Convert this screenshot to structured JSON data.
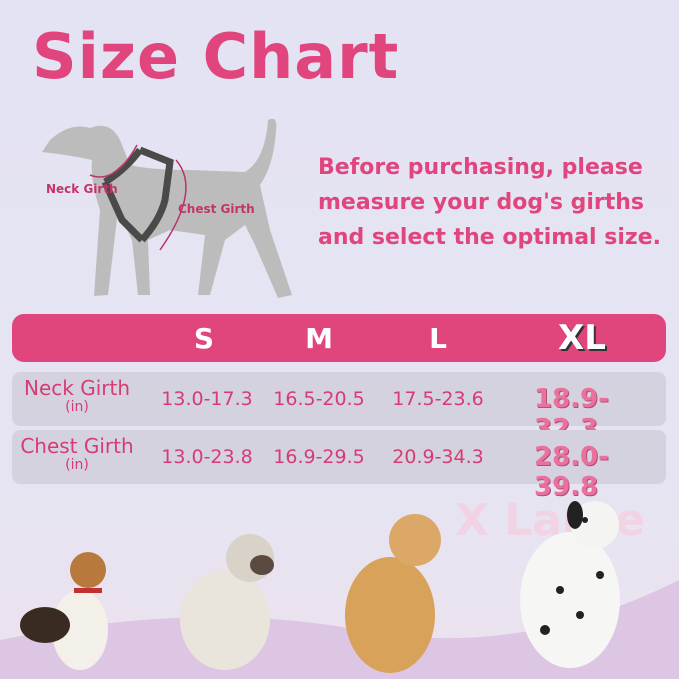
{
  "title": "Size Chart",
  "diagram": {
    "neck_label": "Neck Girth",
    "chest_label": "Chest Girth"
  },
  "intro": "Before purchasing, please measure your dog's girths and select the optimal size.",
  "sizes": [
    "S",
    "M",
    "L",
    "XL"
  ],
  "rows": [
    {
      "label": "Neck Girth",
      "unit": "(in)",
      "values": [
        "13.0-17.3",
        "16.5-20.5",
        "17.5-23.6",
        "18.9-32.3"
      ]
    },
    {
      "label": "Chest Girth",
      "unit": "(in)",
      "values": [
        "13.0-23.8",
        "16.9-29.5",
        "20.9-34.3",
        "28.0-39.8"
      ]
    }
  ],
  "watermark": "X Large",
  "colors": {
    "accent": "#e0457d",
    "row_bg": "#d3d2de",
    "silhouette": "#bdbcbc"
  }
}
